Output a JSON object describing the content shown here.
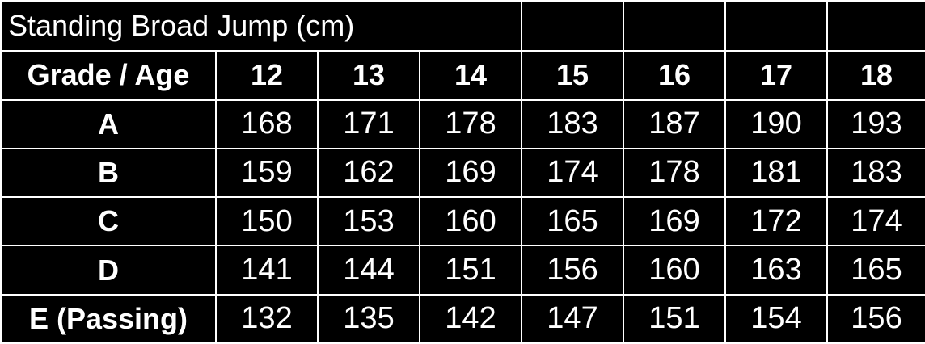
{
  "table": {
    "title": "Standing Broad Jump (cm)",
    "header": [
      "Grade / Age",
      "12",
      "13",
      "14",
      "15",
      "16",
      "17",
      "18"
    ],
    "rows": [
      {
        "grade": "A",
        "values": [
          "168",
          "171",
          "178",
          "183",
          "187",
          "190",
          "193"
        ]
      },
      {
        "grade": "B",
        "values": [
          "159",
          "162",
          "169",
          "174",
          "178",
          "181",
          "183"
        ]
      },
      {
        "grade": "C",
        "values": [
          "150",
          "153",
          "160",
          "165",
          "169",
          "172",
          "174"
        ]
      },
      {
        "grade": "D",
        "values": [
          "141",
          "144",
          "151",
          "156",
          "160",
          "163",
          "165"
        ]
      },
      {
        "grade": "E (Passing)",
        "values": [
          "132",
          "135",
          "142",
          "147",
          "151",
          "154",
          "156"
        ]
      }
    ]
  },
  "colors": {
    "background": "#000000",
    "text": "#ffffff",
    "border": "#ffffff"
  }
}
